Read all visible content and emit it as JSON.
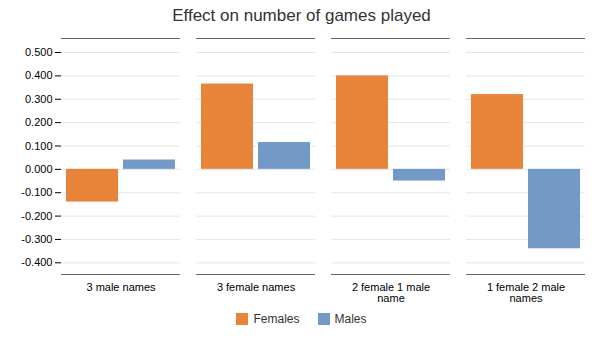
{
  "chart_data": {
    "type": "bar",
    "title": "Effect on number of games played",
    "categories": [
      "3 male names",
      "3 female names",
      "2 female 1 male\nname",
      "1 female 2 male\nnames"
    ],
    "series": [
      {
        "name": "Females",
        "color": "#E8833A",
        "values": [
          -0.14,
          0.365,
          0.4,
          0.32
        ]
      },
      {
        "name": "Males",
        "color": "#7399C6",
        "values": [
          0.04,
          0.115,
          -0.05,
          -0.34
        ]
      }
    ],
    "ylim": [
      -0.45,
      0.56
    ],
    "yticks": [
      {
        "value": -0.4,
        "label": "-0.400"
      },
      {
        "value": -0.3,
        "label": "-0.300"
      },
      {
        "value": -0.2,
        "label": "-0.200"
      },
      {
        "value": -0.1,
        "label": "-0.100"
      },
      {
        "value": 0.0,
        "label": "0.000"
      },
      {
        "value": 0.1,
        "label": "0.100"
      },
      {
        "value": 0.2,
        "label": "0.200"
      },
      {
        "value": 0.3,
        "label": "0.300"
      },
      {
        "value": 0.4,
        "label": "0.400"
      },
      {
        "value": 0.5,
        "label": "0.500"
      }
    ],
    "grid": true,
    "legend": "bottom"
  }
}
